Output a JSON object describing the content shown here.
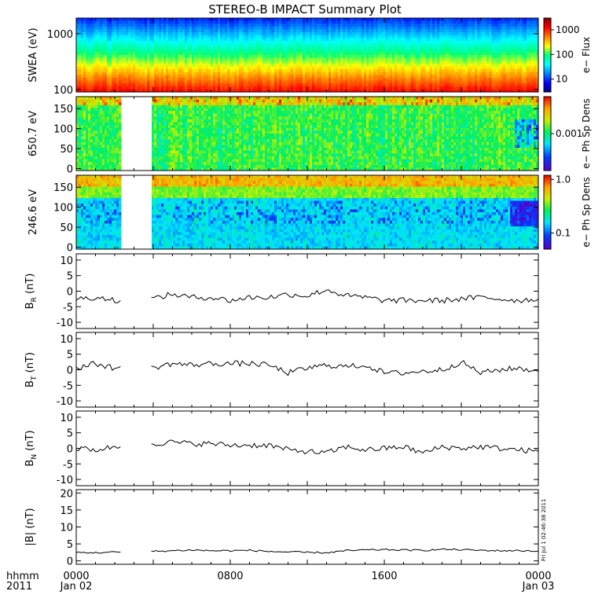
{
  "title": "STEREO-B IMPACT Summary Plot",
  "stamp": "Fri Jul 1 02:46:38 2011",
  "time_axis": {
    "corner_label_top": "hhmm",
    "corner_label_bottom": "2011",
    "ticks": [
      {
        "hour": 0,
        "label": "0000",
        "sublabel": "Jan 02"
      },
      {
        "hour": 8,
        "label": "0800",
        "sublabel": ""
      },
      {
        "hour": 16,
        "label": "1600",
        "sublabel": ""
      },
      {
        "hour": 24,
        "label": "0000",
        "sublabel": "Jan 03"
      }
    ],
    "range_hours": [
      0,
      24
    ]
  },
  "chart_data": [
    {
      "type": "heatmap",
      "ylabel": "SWEA (eV)",
      "yscale": "log",
      "ylim": [
        90,
        1900
      ],
      "yticks": [
        {
          "v": 100,
          "label": "100"
        },
        {
          "v": 1000,
          "label": "1000"
        }
      ],
      "colorbar": {
        "title": "e− Flux",
        "scale": "log",
        "range": [
          3,
          3000
        ],
        "ticks": [
          {
            "v": 10,
            "label": "10"
          },
          {
            "v": 100,
            "label": "100"
          },
          {
            "v": 1000,
            "label": "1000"
          }
        ]
      },
      "data_gap_hours": null,
      "description": "flux decreasing with energy"
    },
    {
      "type": "heatmap",
      "ylabel": "650.7 eV",
      "yscale": "linear",
      "ylim": [
        -5,
        180
      ],
      "yticks": [
        {
          "v": 0,
          "label": "0"
        },
        {
          "v": 50,
          "label": "50"
        },
        {
          "v": 100,
          "label": "100"
        },
        {
          "v": 150,
          "label": "150"
        }
      ],
      "colorbar": {
        "title": "e− Ph Sp Dens",
        "scale": "log",
        "range": [
          0.0001,
          0.01
        ],
        "ticks": [
          {
            "v": 0.001,
            "label": "0.001"
          }
        ]
      },
      "data_gap_hours": [
        2.3,
        3.9
      ]
    },
    {
      "type": "heatmap",
      "ylabel": "246.6 eV",
      "yscale": "linear",
      "ylim": [
        -5,
        180
      ],
      "yticks": [
        {
          "v": 0,
          "label": "0"
        },
        {
          "v": 50,
          "label": "50"
        },
        {
          "v": 100,
          "label": "100"
        },
        {
          "v": 150,
          "label": "150"
        }
      ],
      "colorbar": {
        "title": "e− Ph Sp Dens",
        "scale": "log",
        "range": [
          0.05,
          1.2
        ],
        "ticks": [
          {
            "v": 0.1,
            "label": "0.1"
          },
          {
            "v": 1.0,
            "label": "1.0"
          }
        ]
      },
      "data_gap_hours": [
        2.3,
        3.9
      ]
    },
    {
      "type": "line",
      "ylabel_main": "B",
      "ylabel_sub": "R",
      "ylabel_unit": "(nT)",
      "ylim": [
        -12,
        12
      ],
      "yticks": [
        -10,
        -5,
        0,
        5,
        10
      ],
      "data_gap_hours": [
        2.3,
        3.9
      ],
      "x_hours": [
        0,
        1,
        2,
        2.3,
        3.9,
        5,
        6,
        7,
        8,
        9,
        10,
        11,
        12,
        13,
        14,
        15,
        16,
        17,
        18,
        19,
        20,
        21,
        22,
        23,
        24
      ],
      "values": [
        -2.5,
        -2,
        -2.8,
        -3,
        -2.5,
        -1,
        -2,
        -2,
        -3,
        -2,
        -2,
        -1,
        -1.5,
        0.5,
        -1.5,
        -2,
        -3,
        -3,
        -3,
        -3,
        -2.5,
        -2,
        -2.5,
        -3,
        -2.5
      ]
    },
    {
      "type": "line",
      "ylabel_main": "B",
      "ylabel_sub": "T",
      "ylabel_unit": "(nT)",
      "ylim": [
        -12,
        12
      ],
      "yticks": [
        -10,
        -5,
        0,
        5,
        10
      ],
      "data_gap_hours": [
        2.3,
        3.9
      ],
      "x_hours": [
        0,
        1,
        2,
        2.3,
        3.9,
        5,
        6,
        7,
        8,
        9,
        10,
        11,
        12,
        13,
        14,
        15,
        16,
        17,
        18,
        19,
        20,
        21,
        22,
        23,
        24
      ],
      "values": [
        0.5,
        2,
        0.5,
        1,
        0.5,
        2,
        1.5,
        2,
        2,
        2,
        1.5,
        -1,
        0.5,
        1.5,
        1,
        1.5,
        -1,
        -1,
        -0.5,
        0,
        2.5,
        -1,
        0,
        0.5,
        -0.5
      ]
    },
    {
      "type": "line",
      "ylabel_main": "B",
      "ylabel_sub": "N",
      "ylabel_unit": "(nT)",
      "ylim": [
        -12,
        12
      ],
      "yticks": [
        -10,
        -5,
        0,
        5,
        10
      ],
      "data_gap_hours": [
        2.3,
        3.9
      ],
      "x_hours": [
        0,
        1,
        2,
        2.3,
        3.9,
        5,
        6,
        7,
        8,
        9,
        10,
        11,
        12,
        13,
        14,
        15,
        16,
        17,
        18,
        19,
        20,
        21,
        22,
        23,
        24
      ],
      "values": [
        0,
        -0.5,
        0.5,
        0.5,
        1.5,
        2,
        1.5,
        1.5,
        1,
        1,
        1,
        -0.5,
        -1,
        -1.5,
        0.5,
        -0.5,
        0,
        0.5,
        -1.5,
        0.5,
        0,
        0.5,
        0,
        -0.5,
        -1
      ]
    },
    {
      "type": "line",
      "ylabel_main": "|B|",
      "ylabel_sub": "",
      "ylabel_unit": "(nT)",
      "ylim": [
        -1,
        21
      ],
      "yticks": [
        0,
        5,
        10,
        15,
        20
      ],
      "data_gap_hours": [
        2.3,
        3.9
      ],
      "x_hours": [
        0,
        1,
        2,
        2.3,
        3.9,
        5,
        6,
        7,
        8,
        9,
        10,
        11,
        12,
        13,
        14,
        15,
        16,
        17,
        18,
        19,
        20,
        21,
        22,
        23,
        24
      ],
      "values": [
        2.5,
        2.4,
        2.6,
        2.6,
        2.8,
        3.0,
        3.2,
        3.0,
        3.0,
        3.1,
        2.8,
        2.6,
        2.5,
        2.4,
        3.0,
        3.2,
        3.3,
        3.2,
        3.1,
        3.4,
        3.3,
        3.1,
        3.0,
        3.0,
        2.9
      ]
    }
  ]
}
